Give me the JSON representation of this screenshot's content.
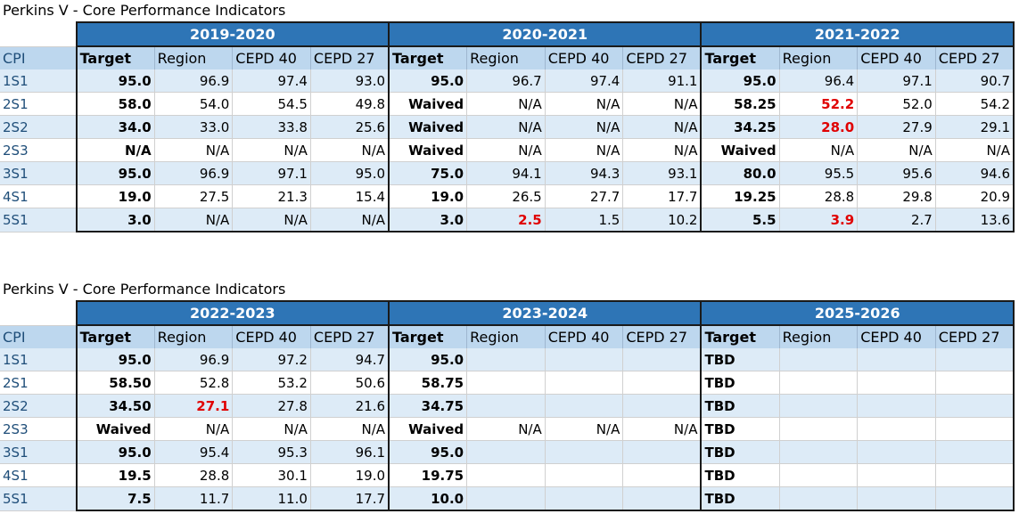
{
  "tables": [
    {
      "title": "Perkins V - Core Performance Indicators",
      "years": [
        "2019-2020",
        "2020-2021",
        "2021-2022"
      ],
      "column_headers": [
        "CPI",
        "Target",
        "Region",
        "CEPD 40",
        "CEPD 27",
        "Target",
        "Region",
        "CEPD 40",
        "CEPD 27",
        "Target",
        "Region",
        "CEPD 40",
        "CEPD 27"
      ],
      "rows": [
        [
          "1S1",
          "95.0",
          "96.9",
          "97.4",
          "93.0",
          "95.0",
          "96.7",
          "97.4",
          "91.1",
          "95.0",
          "96.4",
          "97.1",
          "90.7"
        ],
        [
          "2S1",
          "58.0",
          "54.0",
          "54.5",
          "49.8",
          "Waived",
          "N/A",
          "N/A",
          "N/A",
          "58.25",
          "52.2",
          "52.0",
          "54.2"
        ],
        [
          "2S2",
          "34.0",
          "33.0",
          "33.8",
          "25.6",
          "Waived",
          "N/A",
          "N/A",
          "N/A",
          "34.25",
          "28.0",
          "27.9",
          "29.1"
        ],
        [
          "2S3",
          "N/A",
          "N/A",
          "N/A",
          "N/A",
          "Waived",
          "N/A",
          "N/A",
          "N/A",
          "Waived",
          "N/A",
          "N/A",
          "N/A"
        ],
        [
          "3S1",
          "95.0",
          "96.9",
          "97.1",
          "95.0",
          "75.0",
          "94.1",
          "94.3",
          "93.1",
          "80.0",
          "95.5",
          "95.6",
          "94.6"
        ],
        [
          "4S1",
          "19.0",
          "27.5",
          "21.3",
          "15.4",
          "19.0",
          "26.5",
          "27.7",
          "17.7",
          "19.25",
          "28.8",
          "29.8",
          "20.9"
        ],
        [
          "5S1",
          "3.0",
          "N/A",
          "N/A",
          "N/A",
          "3.0",
          "2.5",
          "1.5",
          "10.2",
          "5.5",
          "3.9",
          "2.7",
          "13.6"
        ]
      ],
      "highlighted_red": [
        [
          1,
          10
        ],
        [
          2,
          10
        ],
        [
          6,
          6
        ],
        [
          6,
          10
        ]
      ]
    },
    {
      "title": "Perkins V - Core Performance Indicators",
      "years": [
        "2022-2023",
        "2023-2024",
        "2025-2026"
      ],
      "column_headers": [
        "CPI",
        "Target",
        "Region",
        "CEPD 40",
        "CEPD 27",
        "Target",
        "Region",
        "CEPD 40",
        "CEPD 27",
        "Target",
        "Region",
        "CEPD 40",
        "CEPD 27"
      ],
      "rows": [
        [
          "1S1",
          "95.0",
          "96.9",
          "97.2",
          "94.7",
          "95.0",
          "",
          "",
          "",
          "TBD",
          "",
          "",
          ""
        ],
        [
          "2S1",
          "58.50",
          "52.8",
          "53.2",
          "50.6",
          "58.75",
          "",
          "",
          "",
          "TBD",
          "",
          "",
          ""
        ],
        [
          "2S2",
          "34.50",
          "27.1",
          "27.8",
          "21.6",
          "34.75",
          "",
          "",
          "",
          "TBD",
          "",
          "",
          ""
        ],
        [
          "2S3",
          "Waived",
          "N/A",
          "N/A",
          "N/A",
          "Waived",
          "N/A",
          "N/A",
          "N/A",
          "TBD",
          "",
          "",
          ""
        ],
        [
          "3S1",
          "95.0",
          "95.4",
          "95.3",
          "96.1",
          "95.0",
          "",
          "",
          "",
          "TBD",
          "",
          "",
          ""
        ],
        [
          "4S1",
          "19.5",
          "28.8",
          "30.1",
          "19.0",
          "19.75",
          "",
          "",
          "",
          "TBD",
          "",
          "",
          ""
        ],
        [
          "5S1",
          "7.5",
          "11.7",
          "11.0",
          "17.7",
          "10.0",
          "",
          "",
          "",
          "TBD",
          "",
          "",
          ""
        ]
      ],
      "highlighted_red": [
        [
          2,
          2
        ]
      ]
    }
  ],
  "colors": {
    "year_header": "#2e75b6",
    "column_header": "#bdd7ee",
    "band_row": "#ddebf7",
    "highlight": "#e00000"
  }
}
